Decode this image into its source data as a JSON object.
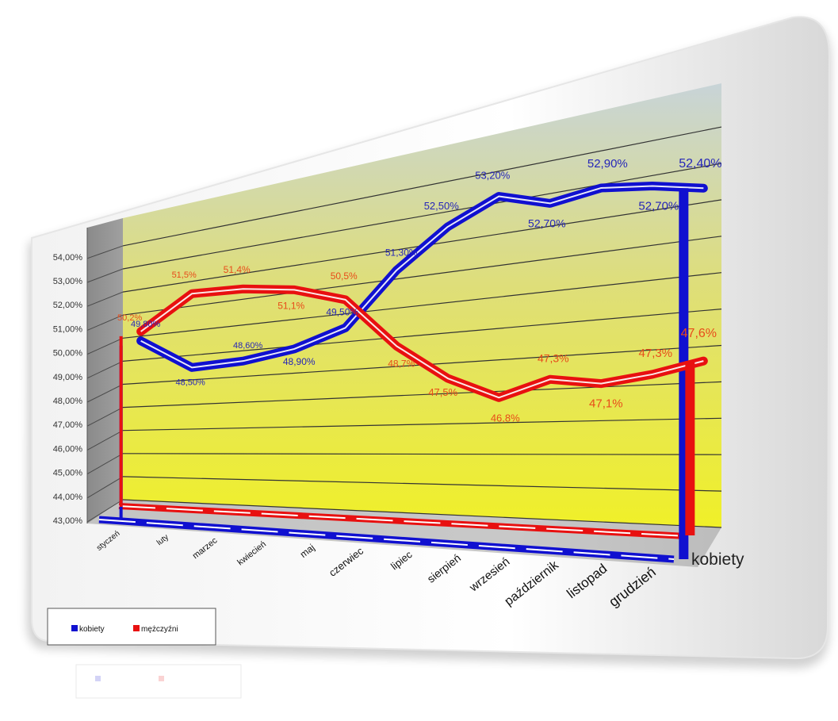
{
  "chart_data": {
    "type": "line",
    "categories": [
      "styczeń",
      "luty",
      "marzec",
      "kwiecień",
      "maj",
      "czerwiec",
      "lipiec",
      "sierpień",
      "wrzesień",
      "październik",
      "listopad",
      "grudzień"
    ],
    "ylim": [
      43,
      54
    ],
    "y_tick_labels": [
      "43,00%",
      "44,00%",
      "45,00%",
      "46,00%",
      "47,00%",
      "48,00%",
      "49,00%",
      "50,00%",
      "51,00%",
      "52,00%",
      "53,00%",
      "54,00%"
    ],
    "depth_axis_label": "kobiety",
    "grid": true,
    "legend_position": "bottom-left",
    "series": [
      {
        "name": "kobiety",
        "color": "#1010d0",
        "values": [
          49.8,
          48.5,
          48.6,
          48.9,
          49.5,
          51.3,
          52.5,
          53.2,
          52.7,
          52.9,
          52.7,
          52.4
        ],
        "data_labels": [
          "49,80%",
          "48,50%",
          "48,60%",
          "48,90%",
          "49,50%",
          "51,30%",
          "52,50%",
          "53,20%",
          "52,70%",
          "52,90%",
          "52,70%",
          "52,40%"
        ]
      },
      {
        "name": "mężczyźni",
        "color": "#e81010",
        "values": [
          50.2,
          51.5,
          51.4,
          51.1,
          50.5,
          48.7,
          47.5,
          46.8,
          47.3,
          47.1,
          47.3,
          47.6
        ],
        "data_labels": [
          "50,2%",
          "51,5%",
          "51,4%",
          "51,1%",
          "50,5%",
          "48,7%",
          "47,5%",
          "46,8%",
          "47,3%",
          "47,1%",
          "47,3%",
          "47,6%"
        ]
      }
    ]
  }
}
